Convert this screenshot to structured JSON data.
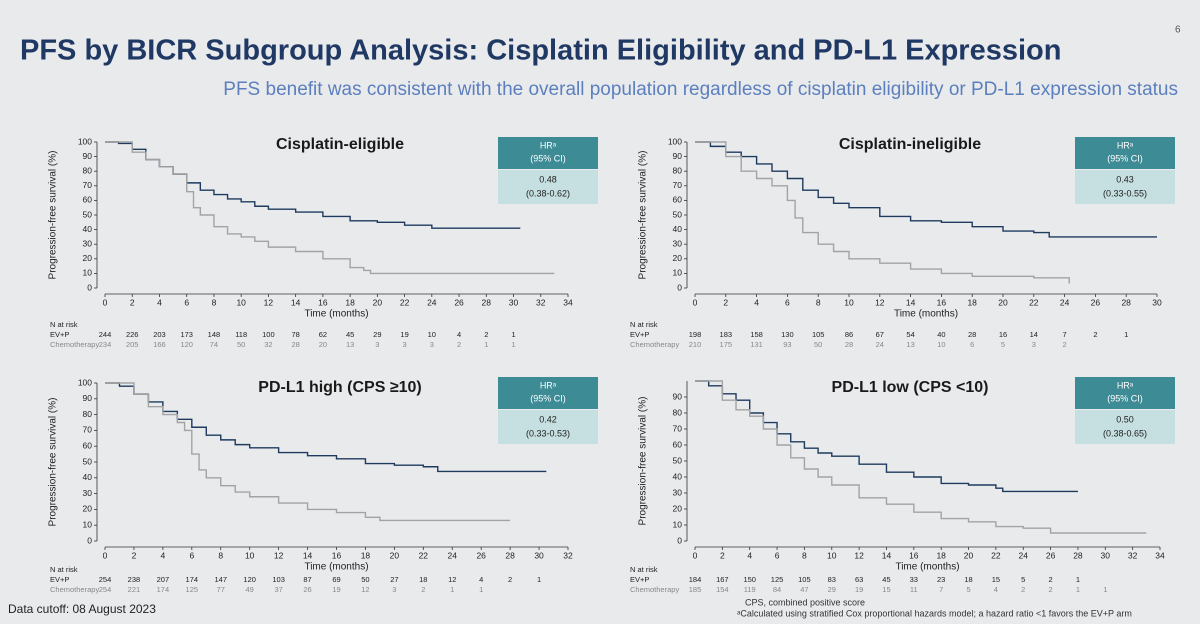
{
  "title": "PFS by BICR Subgroup Analysis: Cisplatin Eligibility and PD-L1 Expression",
  "subtitle": "PFS benefit was consistent with the overall population regardless of cisplatin eligibility or PD-L1 expression status",
  "page_number": "6",
  "data_cutoff": "Data cutoff: 08 August 2023",
  "footnotes": [
    "CPS, combined positive score",
    "ᵃCalculated using stratified Cox proportional hazards model; a hazard ratio <1 favors the EV+P arm"
  ],
  "chart_data": [
    {
      "type": "line",
      "title": "Cisplatin-eligible",
      "ylabel": "Progression-free survival (%)",
      "xlabel": "Time (months)",
      "hr_header": [
        "HRᵃ",
        "(95% CI)"
      ],
      "hr_value": [
        "0.48",
        "(0.38-0.62)"
      ],
      "risk_label": "N at risk",
      "xlim": [
        0,
        34
      ],
      "xticks": [
        0,
        2,
        4,
        6,
        8,
        10,
        12,
        14,
        16,
        18,
        20,
        22,
        24,
        26,
        28,
        30,
        32,
        34
      ],
      "ylim": [
        0,
        100
      ],
      "yticks": [
        0,
        10,
        20,
        30,
        40,
        50,
        60,
        70,
        80,
        90,
        100
      ],
      "series": [
        {
          "name": "EV+P",
          "color": "#1f3a5f",
          "x": [
            0,
            1,
            2,
            3,
            4,
            5,
            6,
            7,
            8,
            9,
            10,
            11,
            12,
            14,
            16,
            18,
            20,
            22,
            24,
            30.5
          ],
          "values": [
            100,
            99,
            95,
            88,
            83,
            78,
            72,
            67,
            64,
            61,
            59,
            56,
            54,
            52,
            49,
            46,
            45,
            43,
            41,
            41
          ],
          "at_risk": [
            244,
            226,
            203,
            173,
            148,
            118,
            100,
            78,
            62,
            45,
            29,
            19,
            10,
            4,
            2,
            1
          ]
        },
        {
          "name": "Chemotherapy",
          "color": "#a3a3a3",
          "x": [
            0,
            2,
            3,
            4,
            5,
            6,
            6.5,
            7,
            8,
            9,
            10,
            11,
            12,
            14,
            16,
            18,
            19,
            19.5,
            33
          ],
          "values": [
            100,
            93,
            88,
            83,
            78,
            66,
            55,
            50,
            42,
            37,
            35,
            32,
            28,
            25,
            20,
            14,
            12,
            10,
            10
          ],
          "at_risk": [
            234,
            205,
            166,
            120,
            74,
            50,
            32,
            28,
            20,
            13,
            3,
            3,
            3,
            2,
            1,
            1
          ]
        }
      ]
    },
    {
      "type": "line",
      "title": "Cisplatin-ineligible",
      "ylabel": "Progression-free survival (%)",
      "xlabel": "Time (months)",
      "hr_header": [
        "HRᵃ",
        "(95% CI)"
      ],
      "hr_value": [
        "0.43",
        "(0.33-0.55)"
      ],
      "risk_label": "N at risk",
      "xlim": [
        0,
        30
      ],
      "xticks": [
        0,
        2,
        4,
        6,
        8,
        10,
        12,
        14,
        16,
        18,
        20,
        22,
        24,
        26,
        28,
        30
      ],
      "ylim": [
        0,
        100
      ],
      "yticks": [
        0,
        10,
        20,
        30,
        40,
        50,
        60,
        70,
        80,
        90,
        100
      ],
      "series": [
        {
          "name": "EV+P",
          "color": "#1f3a5f",
          "x": [
            0,
            1,
            2,
            3,
            4,
            5,
            6,
            7,
            8,
            9,
            10,
            12,
            14,
            16,
            18,
            20,
            22,
            23,
            30
          ],
          "values": [
            100,
            97,
            93,
            90,
            85,
            80,
            75,
            67,
            62,
            58,
            55,
            49,
            46,
            45,
            42,
            39,
            38,
            35,
            35
          ],
          "at_risk": [
            198,
            183,
            158,
            130,
            105,
            86,
            67,
            54,
            40,
            28,
            16,
            14,
            7,
            2,
            1
          ]
        },
        {
          "name": "Chemotherapy",
          "color": "#a3a3a3",
          "x": [
            0,
            2,
            3,
            4,
            5,
            6,
            6.5,
            7,
            8,
            9,
            10,
            12,
            14,
            16,
            18,
            22,
            24,
            24.3
          ],
          "values": [
            100,
            90,
            80,
            75,
            70,
            60,
            48,
            38,
            30,
            25,
            20,
            17,
            13,
            10,
            8,
            7,
            7,
            3
          ],
          "at_risk": [
            210,
            175,
            131,
            93,
            50,
            28,
            24,
            13,
            10,
            6,
            5,
            3,
            2
          ]
        }
      ]
    },
    {
      "type": "line",
      "title": "PD-L1 high (CPS ≥10)",
      "ylabel": "Progression-free survival (%)",
      "xlabel": "Time (months)",
      "hr_header": [
        "HRᵃ",
        "(95% CI)"
      ],
      "hr_value": [
        "0.42",
        "(0.33-0.53)"
      ],
      "risk_label": "N at risk",
      "xlim": [
        0,
        32
      ],
      "xticks": [
        0,
        2,
        4,
        6,
        8,
        10,
        12,
        14,
        16,
        18,
        20,
        22,
        24,
        26,
        28,
        30,
        32
      ],
      "ylim": [
        0,
        100
      ],
      "yticks": [
        0,
        10,
        20,
        30,
        40,
        50,
        60,
        70,
        80,
        90,
        100
      ],
      "series": [
        {
          "name": "EV+P",
          "color": "#1f3a5f",
          "x": [
            0,
            1,
            2,
            3,
            4,
            5,
            6,
            7,
            8,
            9,
            10,
            12,
            14,
            16,
            18,
            20,
            22,
            23,
            30.5
          ],
          "values": [
            100,
            98,
            93,
            88,
            82,
            77,
            72,
            67,
            64,
            61,
            59,
            56,
            54,
            52,
            49,
            48,
            47,
            44,
            44
          ],
          "at_risk": [
            254,
            238,
            207,
            174,
            147,
            120,
            103,
            87,
            69,
            50,
            27,
            18,
            12,
            4,
            2,
            1
          ]
        },
        {
          "name": "Chemotherapy",
          "color": "#a3a3a3",
          "x": [
            0,
            2,
            3,
            4,
            5,
            5.5,
            6,
            6.5,
            7,
            8,
            9,
            10,
            12,
            14,
            16,
            18,
            19,
            28
          ],
          "values": [
            100,
            93,
            85,
            80,
            75,
            70,
            55,
            45,
            40,
            35,
            31,
            28,
            24,
            20,
            18,
            15,
            13,
            13
          ],
          "at_risk": [
            254,
            221,
            174,
            125,
            77,
            49,
            37,
            26,
            19,
            12,
            3,
            2,
            1,
            1
          ]
        }
      ]
    },
    {
      "type": "line",
      "title": "PD-L1 low (CPS <10)",
      "ylabel": "Progression-free survival (%)",
      "xlabel": "Time (months)",
      "hr_header": [
        "HRᵃ",
        "(95% CI)"
      ],
      "hr_value": [
        "0.50",
        "(0.38-0.65)"
      ],
      "risk_label": "N at risk",
      "xlim": [
        0,
        34
      ],
      "xticks": [
        0,
        2,
        4,
        6,
        8,
        10,
        12,
        14,
        16,
        18,
        20,
        22,
        24,
        26,
        28,
        30,
        32,
        34
      ],
      "ylim": [
        0,
        100
      ],
      "yticks": [
        0,
        10,
        20,
        30,
        40,
        50,
        60,
        70,
        80,
        90
      ],
      "series": [
        {
          "name": "EV+P",
          "color": "#1f3a5f",
          "x": [
            0,
            1,
            2,
            3,
            4,
            5,
            6,
            7,
            8,
            9,
            10,
            12,
            14,
            16,
            18,
            20,
            22,
            22.5,
            28
          ],
          "values": [
            100,
            97,
            92,
            88,
            80,
            74,
            67,
            62,
            58,
            55,
            53,
            48,
            43,
            40,
            36,
            35,
            33,
            31,
            31
          ],
          "at_risk": [
            184,
            167,
            150,
            125,
            105,
            83,
            63,
            45,
            33,
            23,
            18,
            15,
            5,
            2,
            1
          ]
        },
        {
          "name": "Chemotherapy",
          "color": "#a3a3a3",
          "x": [
            0,
            2,
            3,
            4,
            5,
            6,
            7,
            8,
            9,
            10,
            12,
            14,
            16,
            18,
            20,
            22,
            24,
            26,
            33
          ],
          "values": [
            100,
            88,
            82,
            78,
            70,
            60,
            52,
            45,
            40,
            35,
            27,
            23,
            18,
            14,
            12,
            9,
            8,
            5,
            5
          ],
          "at_risk": [
            185,
            154,
            119,
            84,
            47,
            29,
            19,
            15,
            11,
            7,
            5,
            4,
            2,
            2,
            1,
            1
          ]
        }
      ]
    }
  ]
}
